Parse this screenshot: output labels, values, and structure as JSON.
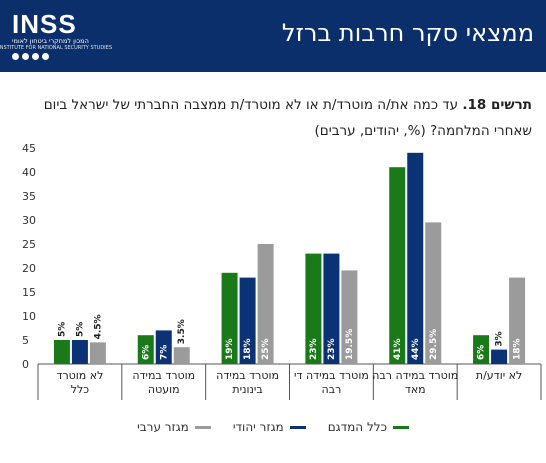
{
  "header": {
    "title": "ממצאי סקר חרבות ברזל",
    "logo_text": "INSS",
    "logo_subtitle": "המכון למחקרי ביטחון לאומי",
    "logo_subtitle2": "INSTITUTE FOR NATIONAL SECURITY STUDIES"
  },
  "caption": {
    "prefix": "תרשים 18.",
    "text": "עד כמה את/ה מוטרד/ת או לא מוטרד/ת ממצבה החברתי של ישראל ביום שאחרי המלחמה? (%, יהודים, ערבים)"
  },
  "chart_data": {
    "type": "bar",
    "categories": [
      "לא מוטרד כלל",
      "מוטרד במידה מועטה",
      "מוטרד במידה בינונית",
      "מוטרד במידה די רבה",
      "מוטרד במידה רבה מאד",
      "לא יודע/ת"
    ],
    "series": [
      {
        "name": "כלל המדגם",
        "color": "#1a7a1a",
        "values": [
          5,
          6,
          19,
          23,
          41,
          6
        ],
        "labels": [
          "5%",
          "6%",
          "19%",
          "23%",
          "41%",
          "6%"
        ]
      },
      {
        "name": "מגזר יהודי",
        "color": "#0b3275",
        "values": [
          5,
          7,
          18,
          23,
          44,
          3
        ],
        "labels": [
          "5%",
          "7%",
          "18%",
          "23%",
          "44%",
          "3%"
        ]
      },
      {
        "name": "מגזר ערבי",
        "color": "#9b9b9b",
        "values": [
          4.5,
          3.5,
          25,
          19.5,
          29.5,
          18
        ],
        "labels": [
          "4.5%",
          "3.5%",
          "25%",
          "19.5%",
          "29.5%",
          "18%"
        ]
      }
    ],
    "ylim": [
      0,
      45
    ],
    "yticks": [
      0,
      5,
      10,
      15,
      20,
      25,
      30,
      35,
      40,
      45
    ],
    "grid": false,
    "legend_position": "bottom"
  }
}
